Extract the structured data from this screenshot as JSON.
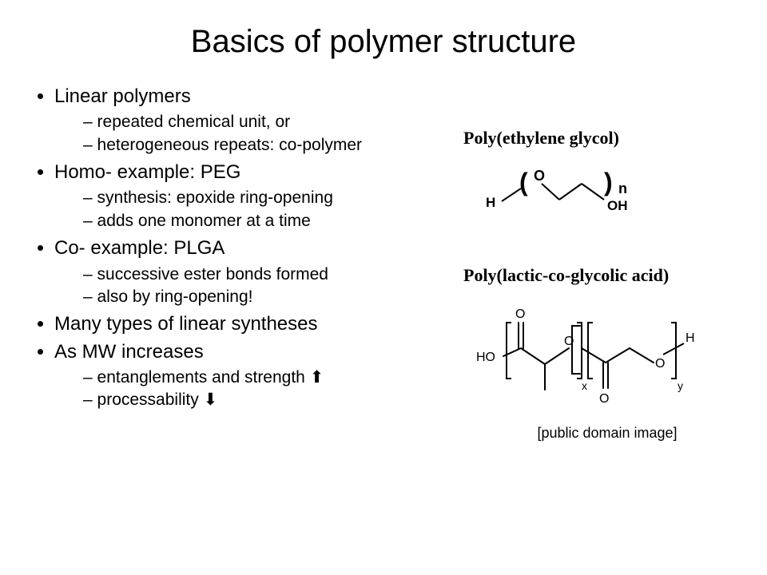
{
  "title": "Basics of polymer structure",
  "bullets": [
    {
      "text": "Linear polymers",
      "sub": [
        "repeated chemical unit, or",
        "heterogeneous repeats: co-polymer"
      ]
    },
    {
      "text": "Homo- example: PEG",
      "sub": [
        "synthesis: epoxide ring-opening",
        "adds one monomer at a time"
      ]
    },
    {
      "text": "Co- example: PLGA",
      "sub": [
        "successive ester bonds formed",
        "also by ring-opening!"
      ]
    },
    {
      "text": "Many types of linear syntheses",
      "sub": []
    },
    {
      "text": "As MW increases",
      "sub": [
        "entanglements and strength é",
        "processability ê"
      ]
    }
  ],
  "peg": {
    "label": "Poly(ethylene glycol)",
    "atoms": {
      "H": "H",
      "O": "O",
      "OH": "OH",
      "n": "n"
    },
    "paren_open": "(",
    "paren_close": ")",
    "style": {
      "line_color": "#000000",
      "line_width": 2,
      "font_size_atom": 17,
      "font_size_paren": 30
    }
  },
  "plga": {
    "label": "Poly(lactic-co-glycolic acid)",
    "caption": "[public domain image]",
    "atoms": {
      "HO": "HO",
      "O": "O",
      "H": "H",
      "x": "x",
      "y": "y"
    },
    "style": {
      "line_color": "#000000",
      "line_width": 2
    }
  },
  "colors": {
    "text": "#000000",
    "background": "#ffffff"
  }
}
